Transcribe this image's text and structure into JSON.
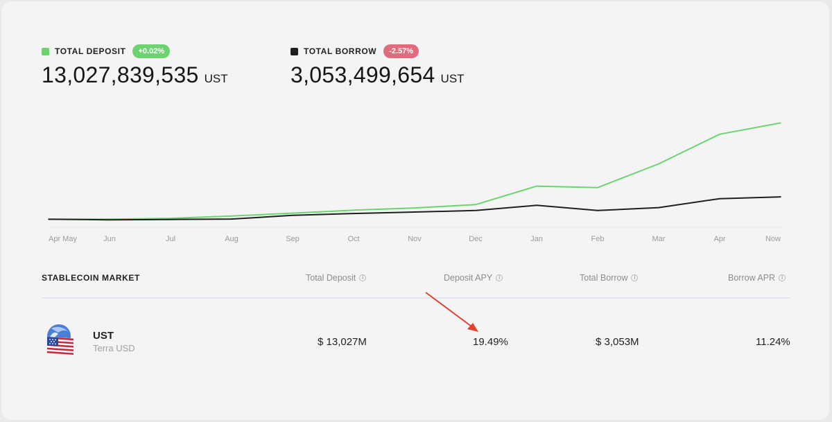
{
  "stats": {
    "deposit": {
      "label": "TOTAL DEPOSIT",
      "change": "+0.02%",
      "amount": "13,027,839,535",
      "unit": "UST",
      "color": "#6bd46f",
      "badge_color": "#6bd46f"
    },
    "borrow": {
      "label": "TOTAL BORROW",
      "change": "-2.57%",
      "amount": "3,053,499,654",
      "unit": "UST",
      "color": "#1f1f1f",
      "badge_color": "#e06b7c"
    }
  },
  "chart": {
    "x_ticks": [
      "Apr May",
      "Jun",
      "Jul",
      "Aug",
      "Sep",
      "Oct",
      "Nov",
      "Dec",
      "Jan",
      "Feb",
      "Mar",
      "Apr",
      "Now"
    ]
  },
  "chart_data": {
    "type": "line",
    "x": [
      "Apr/May",
      "Jun",
      "Jul",
      "Aug",
      "Sep",
      "Oct",
      "Nov",
      "Dec",
      "Jan",
      "Feb",
      "Mar",
      "Apr",
      "Now"
    ],
    "series": [
      {
        "color": "#6bd46f",
        "values": [
          0.02,
          0.03,
          0.15,
          0.45,
          0.85,
          1.25,
          1.55,
          2.0,
          4.5,
          4.3,
          7.5,
          11.5,
          13.03
        ]
      },
      {
        "color": "#1f1f1f",
        "values": [
          0.02,
          -0.05,
          0.0,
          0.05,
          0.55,
          0.8,
          1.0,
          1.2,
          1.9,
          1.2,
          1.6,
          2.8,
          3.05
        ]
      }
    ],
    "ylim": [
      -0.5,
      14
    ],
    "grid": false,
    "legend": "none"
  },
  "market": {
    "title": "STABLECOIN MARKET",
    "columns": [
      "Total Deposit",
      "Deposit APY",
      "Total Borrow",
      "Borrow APR"
    ],
    "info_glyph": "i",
    "rows": [
      {
        "symbol": "UST",
        "name": "Terra USD",
        "icon": "ust-flag-icon",
        "total_deposit": "$ 13,027M",
        "deposit_apy": "19.49%",
        "total_borrow": "$ 3,053M",
        "borrow_apr": "11.24%"
      }
    ]
  },
  "annotation": {
    "icon": "red-arrow-icon",
    "color": "#e0422f"
  }
}
